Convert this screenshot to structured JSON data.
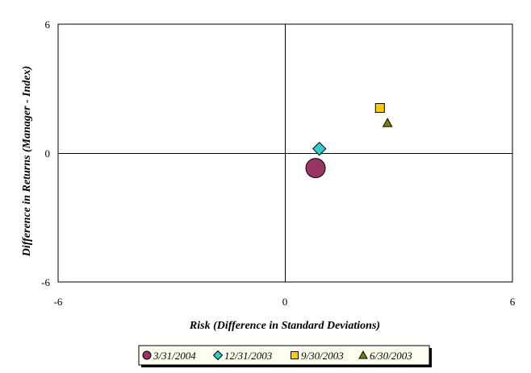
{
  "chart_data": {
    "type": "scatter",
    "xlabel": "Risk (Difference in Standard Deviations)",
    "ylabel": "Difference in Returns (Manager - Index)",
    "xlim": [
      -6,
      6
    ],
    "ylim": [
      -6,
      6
    ],
    "x_ticks": [
      "-6",
      "0",
      "6"
    ],
    "y_ticks": [
      "6",
      "0",
      "-6"
    ],
    "grid": false,
    "quadrant_lines": true,
    "legend_position": "bottom",
    "series": [
      {
        "name": "3/31/2004",
        "marker": "circle",
        "color": "#993366",
        "x": 0.8,
        "y": -0.7
      },
      {
        "name": "12/31/2003",
        "marker": "diamond",
        "color": "#33cccc",
        "x": 0.9,
        "y": 0.2
      },
      {
        "name": "9/30/2003",
        "marker": "square",
        "color": "#ffcc00",
        "x": 2.5,
        "y": 2.1
      },
      {
        "name": "6/30/2003",
        "marker": "triangle",
        "color": "#808000",
        "x": 2.7,
        "y": 1.4
      }
    ]
  }
}
